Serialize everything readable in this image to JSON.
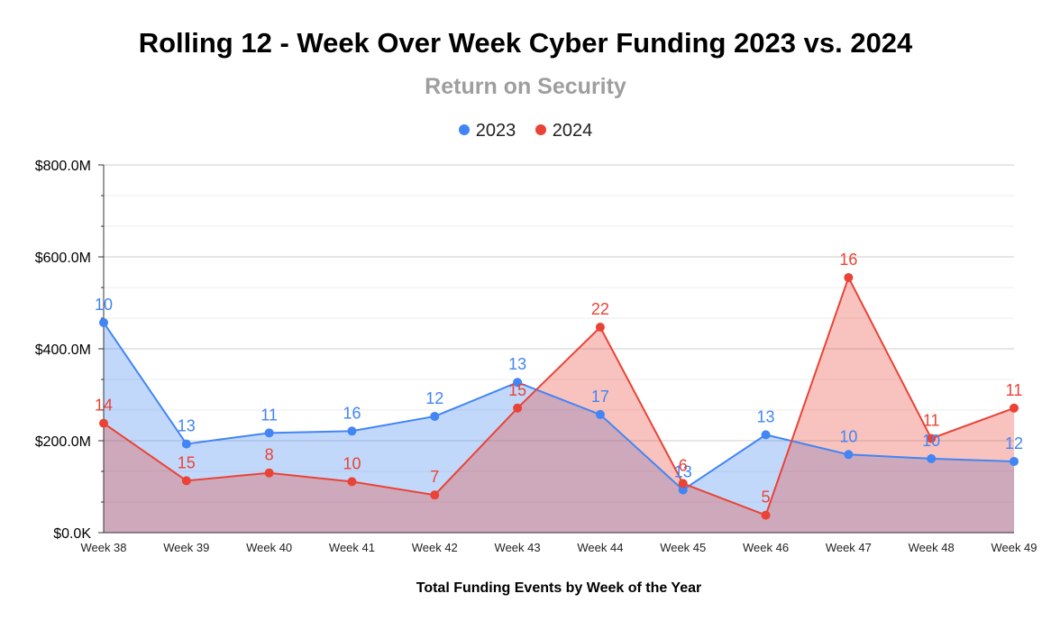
{
  "chart_data": {
    "type": "area",
    "title": "Rolling 12 - Week Over Week Cyber Funding 2023 vs. 2024",
    "subtitle": "Return on Security",
    "xlabel": "Total Funding Events by Week of the Year",
    "ylabel": "",
    "ylim": [
      0,
      800
    ],
    "y_unit": "$M",
    "yticks": [
      0,
      200,
      400,
      600,
      800
    ],
    "ytick_labels": [
      "$0.0K",
      "$200.0M",
      "$400.0M",
      "$600.0M",
      "$800.0M"
    ],
    "grid": true,
    "legend_position": "top-center",
    "categories": [
      "Week 38",
      "Week 39",
      "Week 40",
      "Week 41",
      "Week 42",
      "Week 43",
      "Week 44",
      "Week 45",
      "Week 46",
      "Week 47",
      "Week 48",
      "Week 49"
    ],
    "series": [
      {
        "name": "2023",
        "color": "#4285f4",
        "fill": "#c4d8f7",
        "values": [
          457,
          193,
          217,
          221,
          253,
          327,
          257,
          93,
          213,
          170,
          161,
          155
        ],
        "labels": [
          "10",
          "13",
          "11",
          "16",
          "12",
          "13",
          "17",
          "13",
          "13",
          "10",
          "10",
          "12"
        ]
      },
      {
        "name": "2024",
        "color": "#ea4335",
        "fill": "#f7c1bc",
        "values": [
          238,
          113,
          130,
          111,
          82,
          271,
          447,
          107,
          38,
          555,
          205,
          271
        ],
        "labels": [
          "14",
          "15",
          "8",
          "10",
          "7",
          "15",
          "22",
          "6",
          "5",
          "16",
          "11",
          "11"
        ]
      }
    ]
  }
}
